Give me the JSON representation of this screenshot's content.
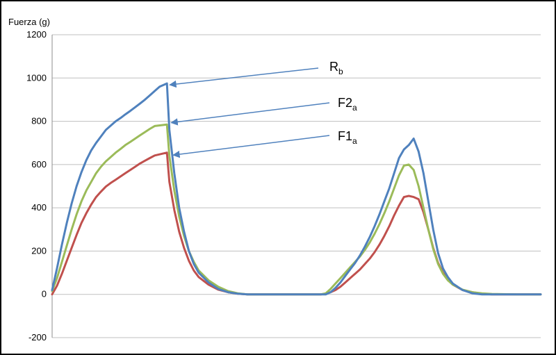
{
  "chart_data": {
    "type": "line",
    "title": "",
    "xlabel": "",
    "ylabel": "Fuerza (g)",
    "ylim": [
      -200,
      1200
    ],
    "xlim": [
      0,
      100
    ],
    "yticks": [
      -200,
      0,
      200,
      400,
      600,
      800,
      1000,
      1200
    ],
    "ytick_labels": [
      "-200",
      "0",
      "200",
      "400",
      "600",
      "800",
      "1000",
      "1200"
    ],
    "grid": true,
    "legend": "none",
    "series": [
      {
        "key": "rb",
        "color": "#4f81bd",
        "points": [
          [
            0,
            20
          ],
          [
            1,
            120
          ],
          [
            2,
            230
          ],
          [
            3,
            330
          ],
          [
            4,
            420
          ],
          [
            5,
            500
          ],
          [
            6,
            565
          ],
          [
            7,
            620
          ],
          [
            8,
            665
          ],
          [
            9,
            700
          ],
          [
            10,
            730
          ],
          [
            11,
            760
          ],
          [
            12,
            780
          ],
          [
            13,
            800
          ],
          [
            14,
            815
          ],
          [
            15,
            832
          ],
          [
            16,
            848
          ],
          [
            17,
            865
          ],
          [
            18,
            882
          ],
          [
            19,
            900
          ],
          [
            20,
            920
          ],
          [
            21,
            940
          ],
          [
            22,
            960
          ],
          [
            23.5,
            975
          ],
          [
            24,
            760
          ],
          [
            25,
            560
          ],
          [
            26,
            400
          ],
          [
            27,
            290
          ],
          [
            28,
            200
          ],
          [
            29,
            140
          ],
          [
            30,
            100
          ],
          [
            32,
            55
          ],
          [
            34,
            25
          ],
          [
            36,
            10
          ],
          [
            38,
            3
          ],
          [
            40,
            0
          ],
          [
            45,
            0
          ],
          [
            50,
            0
          ],
          [
            55,
            0
          ],
          [
            56,
            0
          ],
          [
            57,
            10
          ],
          [
            58,
            30
          ],
          [
            59,
            55
          ],
          [
            60,
            85
          ],
          [
            61,
            115
          ],
          [
            62,
            145
          ],
          [
            63,
            180
          ],
          [
            64,
            220
          ],
          [
            65,
            265
          ],
          [
            66,
            315
          ],
          [
            67,
            370
          ],
          [
            68,
            430
          ],
          [
            69,
            490
          ],
          [
            70,
            560
          ],
          [
            71,
            630
          ],
          [
            72,
            670
          ],
          [
            73,
            690
          ],
          [
            74,
            720
          ],
          [
            75,
            660
          ],
          [
            76,
            560
          ],
          [
            77,
            430
          ],
          [
            78,
            300
          ],
          [
            79,
            190
          ],
          [
            80,
            120
          ],
          [
            81,
            80
          ],
          [
            82,
            50
          ],
          [
            84,
            20
          ],
          [
            86,
            5
          ],
          [
            88,
            0
          ],
          [
            90,
            0
          ],
          [
            95,
            0
          ],
          [
            100,
            0
          ]
        ]
      },
      {
        "key": "f2a",
        "color": "#9bbb59",
        "points": [
          [
            0,
            15
          ],
          [
            1,
            75
          ],
          [
            2,
            150
          ],
          [
            3,
            225
          ],
          [
            4,
            300
          ],
          [
            5,
            370
          ],
          [
            6,
            430
          ],
          [
            7,
            480
          ],
          [
            8,
            520
          ],
          [
            9,
            560
          ],
          [
            10,
            590
          ],
          [
            11,
            615
          ],
          [
            12,
            635
          ],
          [
            13,
            655
          ],
          [
            14,
            672
          ],
          [
            15,
            690
          ],
          [
            16,
            705
          ],
          [
            17,
            720
          ],
          [
            18,
            735
          ],
          [
            19,
            750
          ],
          [
            20,
            765
          ],
          [
            21,
            778
          ],
          [
            23.5,
            785
          ],
          [
            24,
            640
          ],
          [
            25,
            480
          ],
          [
            26,
            360
          ],
          [
            27,
            270
          ],
          [
            28,
            200
          ],
          [
            29,
            150
          ],
          [
            30,
            110
          ],
          [
            32,
            65
          ],
          [
            34,
            35
          ],
          [
            36,
            15
          ],
          [
            38,
            5
          ],
          [
            40,
            0
          ],
          [
            45,
            0
          ],
          [
            50,
            0
          ],
          [
            55,
            0
          ],
          [
            56,
            5
          ],
          [
            57,
            25
          ],
          [
            58,
            50
          ],
          [
            59,
            75
          ],
          [
            60,
            100
          ],
          [
            61,
            125
          ],
          [
            62,
            150
          ],
          [
            63,
            175
          ],
          [
            64,
            205
          ],
          [
            65,
            240
          ],
          [
            66,
            280
          ],
          [
            67,
            325
          ],
          [
            68,
            375
          ],
          [
            69,
            430
          ],
          [
            70,
            490
          ],
          [
            71,
            550
          ],
          [
            72,
            595
          ],
          [
            73,
            600
          ],
          [
            74,
            575
          ],
          [
            75,
            500
          ],
          [
            76,
            400
          ],
          [
            77,
            300
          ],
          [
            78,
            210
          ],
          [
            79,
            140
          ],
          [
            80,
            95
          ],
          [
            81,
            65
          ],
          [
            82,
            45
          ],
          [
            84,
            22
          ],
          [
            86,
            10
          ],
          [
            88,
            5
          ],
          [
            90,
            2
          ],
          [
            95,
            0
          ],
          [
            100,
            0
          ]
        ]
      },
      {
        "key": "f1a",
        "color": "#c0504d",
        "points": [
          [
            0,
            0
          ],
          [
            1,
            40
          ],
          [
            2,
            95
          ],
          [
            3,
            155
          ],
          [
            4,
            215
          ],
          [
            5,
            275
          ],
          [
            6,
            330
          ],
          [
            7,
            375
          ],
          [
            8,
            415
          ],
          [
            9,
            450
          ],
          [
            10,
            475
          ],
          [
            11,
            498
          ],
          [
            12,
            515
          ],
          [
            13,
            530
          ],
          [
            14,
            545
          ],
          [
            15,
            560
          ],
          [
            16,
            575
          ],
          [
            17,
            590
          ],
          [
            18,
            605
          ],
          [
            19,
            618
          ],
          [
            20,
            630
          ],
          [
            21,
            642
          ],
          [
            23.5,
            655
          ],
          [
            24,
            520
          ],
          [
            25,
            390
          ],
          [
            26,
            290
          ],
          [
            27,
            215
          ],
          [
            28,
            155
          ],
          [
            29,
            110
          ],
          [
            30,
            80
          ],
          [
            32,
            45
          ],
          [
            34,
            22
          ],
          [
            36,
            10
          ],
          [
            38,
            3
          ],
          [
            40,
            0
          ],
          [
            45,
            0
          ],
          [
            50,
            0
          ],
          [
            55,
            0
          ],
          [
            56,
            3
          ],
          [
            57,
            10
          ],
          [
            58,
            20
          ],
          [
            59,
            35
          ],
          [
            60,
            55
          ],
          [
            61,
            75
          ],
          [
            62,
            95
          ],
          [
            63,
            115
          ],
          [
            64,
            140
          ],
          [
            65,
            165
          ],
          [
            66,
            195
          ],
          [
            67,
            230
          ],
          [
            68,
            270
          ],
          [
            69,
            315
          ],
          [
            70,
            365
          ],
          [
            71,
            410
          ],
          [
            72,
            450
          ],
          [
            73,
            455
          ],
          [
            74,
            450
          ],
          [
            75,
            440
          ],
          [
            76,
            380
          ],
          [
            77,
            300
          ],
          [
            78,
            215
          ],
          [
            79,
            145
          ],
          [
            80,
            100
          ],
          [
            81,
            70
          ],
          [
            82,
            45
          ],
          [
            84,
            20
          ],
          [
            86,
            10
          ],
          [
            88,
            3
          ],
          [
            90,
            0
          ],
          [
            95,
            0
          ],
          [
            100,
            0
          ]
        ]
      }
    ],
    "annotations": [
      {
        "key": "rb",
        "label_main": "R",
        "label_sub": "b",
        "target_x": 23.5,
        "target_y": 975
      },
      {
        "key": "f2a",
        "label_main": "F2",
        "label_sub": "a",
        "target_x": 23.8,
        "target_y": 800
      },
      {
        "key": "f1a",
        "label_main": "F1",
        "label_sub": "a",
        "target_x": 24.2,
        "target_y": 650
      }
    ]
  }
}
